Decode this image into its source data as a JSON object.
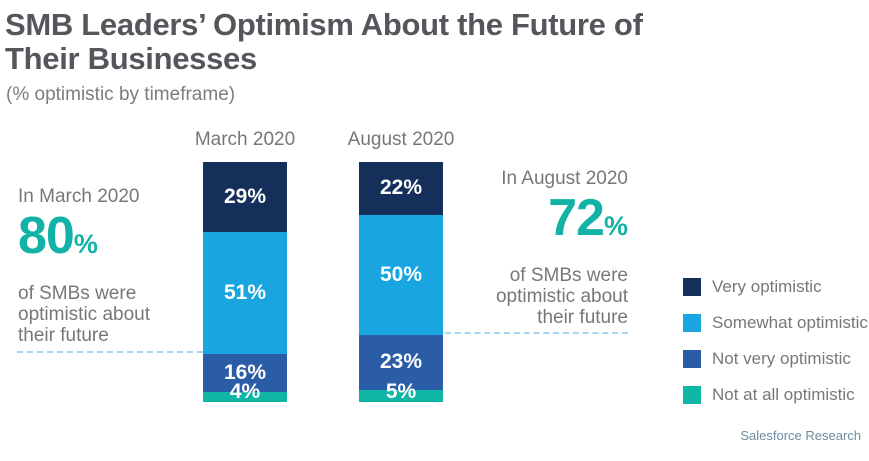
{
  "header": {
    "title": "SMB Leaders’ Optimism About the Future of Their Businesses",
    "subtitle": "(% optimistic by timeframe)"
  },
  "chart_data": {
    "type": "bar",
    "stacked": true,
    "orientation": "vertical",
    "categories": [
      "March 2020",
      "August 2020"
    ],
    "series": [
      {
        "name": "Very optimistic",
        "color": "#14305A",
        "values": [
          29,
          22
        ]
      },
      {
        "name": "Somewhat optimistic",
        "color": "#18A5E0",
        "values": [
          51,
          50
        ]
      },
      {
        "name": "Not very optimistic",
        "color": "#2B5DA7",
        "values": [
          16,
          23
        ]
      },
      {
        "name": "Not at all optimistic",
        "color": "#0FB6A6",
        "values": [
          4,
          5
        ]
      }
    ],
    "value_suffix": "%",
    "ylim": [
      0,
      100
    ],
    "grid": false,
    "legend_position": "right"
  },
  "callouts": {
    "march": {
      "intro": "In March 2020",
      "value": 80,
      "suffix": "%",
      "caption": "of SMBs were optimistic about their future"
    },
    "august": {
      "intro": "In August 2020",
      "value": 72,
      "suffix": "%",
      "caption": "of SMBs were optimistic about their future"
    }
  },
  "footer": {
    "source": "Salesforce Research"
  },
  "colors": {
    "accent_teal": "#12B3A6",
    "dashed_line": "#A7D4EF",
    "title_text": "#54565B",
    "body_text": "#75787B",
    "footer_text": "#6D8CA1",
    "bar_label_text": "#FFFFFF"
  }
}
